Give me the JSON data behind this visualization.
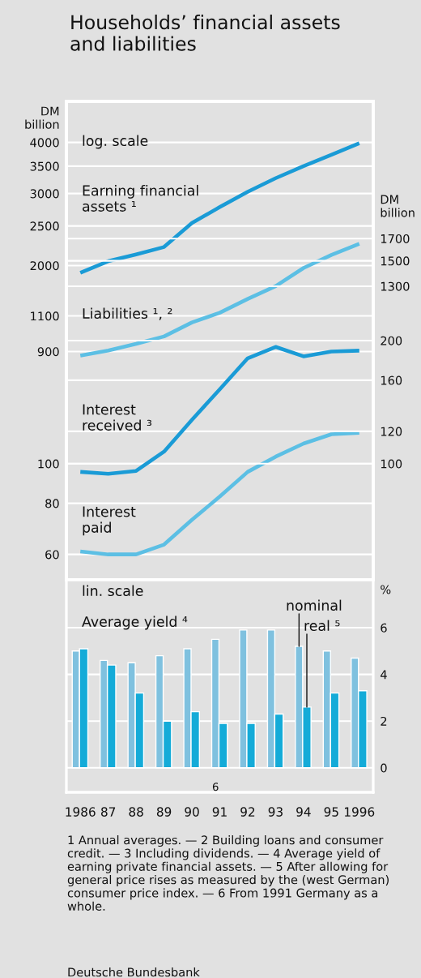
{
  "chart_data": [
    {
      "type": "line",
      "title": "Households’ financial assets\nand liabilities",
      "ylabel": "DM\nbillion",
      "log": true,
      "grid": "y",
      "tick_labels": "y",
      "categories": [
        "1986",
        "87",
        "88",
        "89",
        "90",
        "91",
        "92",
        "93",
        "94",
        "95",
        "1996"
      ],
      "ylim": [
        341,
        5040
      ],
      "yticks": [
        2000,
        2500,
        3000,
        3500,
        4000
      ],
      "annotations": [
        "log. scale"
      ],
      "series": [
        {
          "name": "Earning financial\nassets ¹",
          "color": "#1a9bd6",
          "values": [
            1920,
            2050,
            2130,
            2220,
            2540,
            2780,
            3030,
            3270,
            3500,
            3730,
            3980
          ]
        }
      ]
    },
    {
      "type": "line",
      "log": true,
      "grid": "y",
      "tick_labels": "y",
      "categories": [
        "1986",
        "87",
        "88",
        "89",
        "90",
        "91",
        "92",
        "93",
        "94",
        "95",
        "1996"
      ],
      "ylim": [
        249,
        3680
      ],
      "yticks": [
        900,
        1100
      ],
      "series": [
        {
          "name": "Liabilities ¹, ²",
          "color": "#5cbfe4",
          "values": [
            880,
            905,
            940,
            980,
            1060,
            1120,
            1210,
            1300,
            1440,
            1550,
            1650
          ]
        }
      ]
    },
    {
      "type": "line",
      "y2label": "DM\nbillion",
      "log": "y2",
      "grid": "y",
      "tick_labels": "y",
      "categories": [
        "1986",
        "87",
        "88",
        "89",
        "90",
        "91",
        "92",
        "93",
        "94",
        "95",
        "1996"
      ],
      "y2lim": [
        249,
        3680
      ],
      "y2ticks": [
        1300,
        1500,
        1700
      ]
    },
    {
      "type": "line",
      "log": true,
      "grid": "y",
      "tick_labels": "y",
      "categories": [
        "1986",
        "87",
        "88",
        "89",
        "90",
        "91",
        "92",
        "93",
        "94",
        "95",
        "1996"
      ],
      "ylim": [
        52,
        769
      ],
      "yticks": [
        60,
        80,
        100
      ],
      "series": [
        {
          "name": "Interest\npaid",
          "color": "#5cbfe4",
          "values": [
            61,
            60,
            60,
            63.4,
            72.9,
            83.1,
            95.5,
            104,
            112,
            118,
            119
          ]
        }
      ]
    },
    {
      "type": "line",
      "log": "y2",
      "grid": "y",
      "tick_labels": "y",
      "categories": [
        "1986",
        "87",
        "88",
        "89",
        "90",
        "91",
        "92",
        "93",
        "94",
        "95",
        "1996"
      ],
      "y2lim": [
        52,
        769
      ],
      "y2ticks": [
        100,
        120,
        160,
        200
      ],
      "series": [
        {
          "name": "Interest\nreceived ³",
          "color": "#1a9bd6",
          "axis": "y2",
          "values": [
            95.5,
            94.5,
            96,
            107,
            128,
            152,
            181,
            193,
            183,
            188,
            189
          ]
        }
      ]
    },
    {
      "type": "bar",
      "title": "Average yield ⁴",
      "y2label": "%",
      "grid": "y",
      "categories": [
        "1986",
        "87",
        "88",
        "89",
        "90",
        "91",
        "92",
        "93",
        "94",
        "95",
        "1996"
      ],
      "y2lim": [
        -1.05,
        8.05
      ],
      "y2ticks": [
        0,
        2,
        4,
        6
      ],
      "annotations": [
        "lin. scale",
        "6",
        "1 Annual averages. — 2 Building loans and consumer credit. — 3 Including dividends. — 4 Average yield of earning private financial assets. — 5 After allowing for general price rises as measured by the (west German) consumer price index. — 6 From 1991 Germany as a whole.",
        "Deutsche Bundesbank"
      ],
      "series": [
        {
          "name": "nominal",
          "color": "#7fc1df",
          "axis": "y2",
          "values": [
            5.0,
            4.6,
            4.5,
            4.8,
            5.1,
            5.5,
            5.9,
            5.9,
            5.2,
            5.0,
            4.7
          ]
        },
        {
          "name": "real ⁵",
          "color": "#14abd8",
          "axis": "y2",
          "values": [
            5.1,
            4.4,
            3.2,
            2.0,
            2.4,
            1.9,
            1.9,
            2.3,
            2.6,
            3.2,
            3.3
          ]
        }
      ]
    }
  ]
}
